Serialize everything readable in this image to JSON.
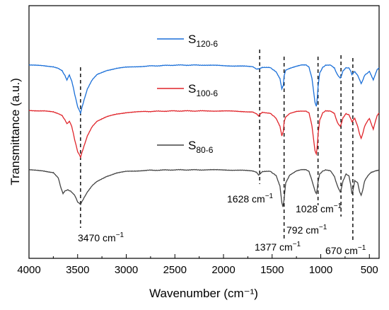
{
  "chart_data": {
    "type": "line",
    "xlabel": "Wavenumber (cm⁻¹)",
    "ylabel": "Transmittance (a.u.)",
    "xlim": [
      4000,
      400
    ],
    "x_reversed": true,
    "xticks": [
      4000,
      3500,
      3000,
      2500,
      2000,
      1500,
      1000,
      500
    ],
    "y_ticks_shown": false,
    "grid": false,
    "series": [
      {
        "name": "S120-6",
        "label_main": "S",
        "label_sub": "120-6",
        "color": "#1a6fd8",
        "offset": 3.3,
        "points": [
          [
            4000,
            0.0
          ],
          [
            3850,
            0.01
          ],
          [
            3750,
            0.03
          ],
          [
            3700,
            0.06
          ],
          [
            3660,
            0.1
          ],
          [
            3630,
            0.2
          ],
          [
            3610,
            0.28
          ],
          [
            3585,
            0.18
          ],
          [
            3560,
            0.3
          ],
          [
            3530,
            0.55
          ],
          [
            3500,
            0.78
          ],
          [
            3470,
            0.9
          ],
          [
            3440,
            0.7
          ],
          [
            3400,
            0.45
          ],
          [
            3350,
            0.28
          ],
          [
            3300,
            0.18
          ],
          [
            3200,
            0.1
          ],
          [
            3100,
            0.06
          ],
          [
            3000,
            0.04
          ],
          [
            2800,
            0.02
          ],
          [
            2500,
            0.0
          ],
          [
            2200,
            0.0
          ],
          [
            2000,
            0.01
          ],
          [
            1800,
            0.02
          ],
          [
            1700,
            0.03
          ],
          [
            1660,
            0.08
          ],
          [
            1640,
            0.07
          ],
          [
            1628,
            0.06
          ],
          [
            1600,
            0.04
          ],
          [
            1520,
            0.05
          ],
          [
            1460,
            0.12
          ],
          [
            1420,
            0.25
          ],
          [
            1400,
            0.45
          ],
          [
            1385,
            0.38
          ],
          [
            1377,
            0.2
          ],
          [
            1360,
            0.1
          ],
          [
            1320,
            0.06
          ],
          [
            1250,
            0.02
          ],
          [
            1200,
            0.0
          ],
          [
            1150,
            0.0
          ],
          [
            1120,
            0.04
          ],
          [
            1090,
            0.25
          ],
          [
            1060,
            0.7
          ],
          [
            1045,
            0.78
          ],
          [
            1035,
            0.6
          ],
          [
            1028,
            0.4
          ],
          [
            1010,
            0.15
          ],
          [
            980,
            0.04
          ],
          [
            950,
            0.0
          ],
          [
            900,
            0.0
          ],
          [
            860,
            0.05
          ],
          [
            830,
            0.18
          ],
          [
            800,
            0.25
          ],
          [
            792,
            0.22
          ],
          [
            770,
            0.1
          ],
          [
            740,
            0.05
          ],
          [
            710,
            0.06
          ],
          [
            690,
            0.12
          ],
          [
            680,
            0.18
          ],
          [
            670,
            0.15
          ],
          [
            650,
            0.12
          ],
          [
            620,
            0.2
          ],
          [
            600,
            0.28
          ],
          [
            585,
            0.35
          ],
          [
            570,
            0.3
          ],
          [
            550,
            0.2
          ],
          [
            520,
            0.15
          ],
          [
            500,
            0.12
          ],
          [
            480,
            0.2
          ],
          [
            460,
            0.28
          ],
          [
            440,
            0.18
          ],
          [
            420,
            0.08
          ],
          [
            400,
            0.05
          ]
        ]
      },
      {
        "name": "S100-6",
        "label_main": "S",
        "label_sub": "100-6",
        "color": "#e0242a",
        "offset": 2.15,
        "points": [
          [
            4000,
            0.0
          ],
          [
            3850,
            0.01
          ],
          [
            3750,
            0.03
          ],
          [
            3700,
            0.06
          ],
          [
            3660,
            0.1
          ],
          [
            3630,
            0.18
          ],
          [
            3610,
            0.25
          ],
          [
            3585,
            0.2
          ],
          [
            3560,
            0.3
          ],
          [
            3530,
            0.55
          ],
          [
            3500,
            0.78
          ],
          [
            3470,
            0.88
          ],
          [
            3440,
            0.7
          ],
          [
            3400,
            0.48
          ],
          [
            3350,
            0.3
          ],
          [
            3300,
            0.2
          ],
          [
            3200,
            0.12
          ],
          [
            3100,
            0.07
          ],
          [
            3000,
            0.04
          ],
          [
            2800,
            0.02
          ],
          [
            2500,
            0.01
          ],
          [
            2200,
            0.01
          ],
          [
            2000,
            0.01
          ],
          [
            1800,
            0.02
          ],
          [
            1700,
            0.03
          ],
          [
            1660,
            0.06
          ],
          [
            1640,
            0.1
          ],
          [
            1628,
            0.08
          ],
          [
            1600,
            0.04
          ],
          [
            1520,
            0.05
          ],
          [
            1460,
            0.15
          ],
          [
            1420,
            0.3
          ],
          [
            1400,
            0.48
          ],
          [
            1385,
            0.4
          ],
          [
            1377,
            0.22
          ],
          [
            1360,
            0.12
          ],
          [
            1320,
            0.06
          ],
          [
            1250,
            0.02
          ],
          [
            1200,
            0.01
          ],
          [
            1150,
            0.01
          ],
          [
            1120,
            0.05
          ],
          [
            1090,
            0.3
          ],
          [
            1060,
            0.75
          ],
          [
            1045,
            0.82
          ],
          [
            1035,
            0.65
          ],
          [
            1028,
            0.45
          ],
          [
            1010,
            0.18
          ],
          [
            980,
            0.05
          ],
          [
            950,
            0.01
          ],
          [
            900,
            0.01
          ],
          [
            860,
            0.06
          ],
          [
            830,
            0.22
          ],
          [
            800,
            0.3
          ],
          [
            792,
            0.27
          ],
          [
            770,
            0.14
          ],
          [
            740,
            0.06
          ],
          [
            710,
            0.08
          ],
          [
            690,
            0.16
          ],
          [
            680,
            0.22
          ],
          [
            670,
            0.19
          ],
          [
            650,
            0.15
          ],
          [
            620,
            0.3
          ],
          [
            600,
            0.45
          ],
          [
            585,
            0.52
          ],
          [
            570,
            0.45
          ],
          [
            550,
            0.3
          ],
          [
            520,
            0.2
          ],
          [
            500,
            0.15
          ],
          [
            480,
            0.25
          ],
          [
            460,
            0.35
          ],
          [
            440,
            0.22
          ],
          [
            420,
            0.1
          ],
          [
            400,
            0.05
          ]
        ]
      },
      {
        "name": "S80-6",
        "label_main": "S",
        "label_sub": "80-6",
        "color": "#444444",
        "offset": 1.0,
        "points": [
          [
            4000,
            0.0
          ],
          [
            3850,
            0.02
          ],
          [
            3750,
            0.05
          ],
          [
            3700,
            0.15
          ],
          [
            3670,
            0.35
          ],
          [
            3650,
            0.45
          ],
          [
            3630,
            0.4
          ],
          [
            3600,
            0.38
          ],
          [
            3570,
            0.4
          ],
          [
            3530,
            0.48
          ],
          [
            3500,
            0.6
          ],
          [
            3470,
            0.65
          ],
          [
            3440,
            0.55
          ],
          [
            3400,
            0.42
          ],
          [
            3350,
            0.3
          ],
          [
            3300,
            0.22
          ],
          [
            3200,
            0.12
          ],
          [
            3100,
            0.06
          ],
          [
            3000,
            0.03
          ],
          [
            2800,
            0.01
          ],
          [
            2500,
            0.0
          ],
          [
            2200,
            0.0
          ],
          [
            2000,
            0.0
          ],
          [
            1800,
            0.01
          ],
          [
            1700,
            0.02
          ],
          [
            1660,
            0.05
          ],
          [
            1640,
            0.1
          ],
          [
            1628,
            0.08
          ],
          [
            1600,
            0.03
          ],
          [
            1520,
            0.03
          ],
          [
            1460,
            0.1
          ],
          [
            1420,
            0.3
          ],
          [
            1400,
            0.62
          ],
          [
            1390,
            0.7
          ],
          [
            1377,
            0.55
          ],
          [
            1360,
            0.25
          ],
          [
            1320,
            0.1
          ],
          [
            1250,
            0.02
          ],
          [
            1200,
            0.0
          ],
          [
            1150,
            0.0
          ],
          [
            1120,
            0.03
          ],
          [
            1090,
            0.2
          ],
          [
            1060,
            0.4
          ],
          [
            1045,
            0.45
          ],
          [
            1035,
            0.35
          ],
          [
            1028,
            0.22
          ],
          [
            1010,
            0.08
          ],
          [
            980,
            0.02
          ],
          [
            950,
            0.0
          ],
          [
            900,
            0.02
          ],
          [
            860,
            0.12
          ],
          [
            830,
            0.3
          ],
          [
            800,
            0.42
          ],
          [
            792,
            0.38
          ],
          [
            770,
            0.2
          ],
          [
            740,
            0.08
          ],
          [
            710,
            0.12
          ],
          [
            690,
            0.3
          ],
          [
            680,
            0.45
          ],
          [
            670,
            0.4
          ],
          [
            650,
            0.2
          ],
          [
            620,
            0.25
          ],
          [
            600,
            0.42
          ],
          [
            585,
            0.48
          ],
          [
            570,
            0.4
          ],
          [
            550,
            0.22
          ],
          [
            520,
            0.12
          ],
          [
            500,
            0.08
          ],
          [
            480,
            0.05
          ],
          [
            460,
            0.04
          ],
          [
            440,
            0.02
          ],
          [
            420,
            0.01
          ],
          [
            400,
            0.0
          ]
        ]
      }
    ],
    "reference_lines": [
      {
        "x": 3470,
        "label": "3470 cm",
        "sup": "−1"
      },
      {
        "x": 1628,
        "label": "1628 cm",
        "sup": "−1"
      },
      {
        "x": 1377,
        "label": "1377 cm",
        "sup": "−1"
      },
      {
        "x": 1028,
        "label": "1028 cm",
        "sup": "−1"
      },
      {
        "x": 792,
        "label": "792 cm",
        "sup": "−1"
      },
      {
        "x": 670,
        "label": "670 cm",
        "sup": "−1"
      }
    ]
  }
}
